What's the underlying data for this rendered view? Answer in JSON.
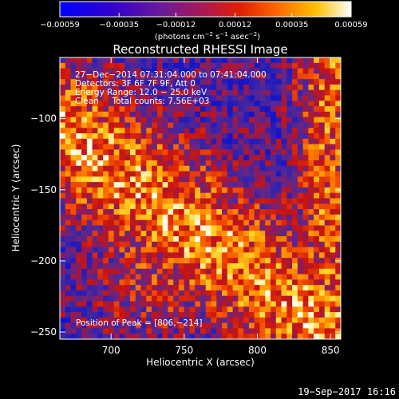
{
  "chart_data": {
    "type": "heatmap",
    "title": "Reconstructed RHESSI Image",
    "xlabel": "Heliocentric X (arcsec)",
    "ylabel": "Heliocentric Y (arcsec)",
    "xlim": [
      665,
      857
    ],
    "ylim": [
      -255,
      -57
    ],
    "x_ticks": [
      700,
      750,
      800,
      850
    ],
    "y_ticks": [
      -100,
      -150,
      -200,
      -250
    ],
    "colorbar": {
      "min": -0.00059,
      "max": 0.00059,
      "ticks": [
        -0.00059,
        -0.00035,
        -0.00012,
        0.00012,
        0.00035,
        0.00059
      ],
      "tick_labels": [
        "−0.00059",
        "−0.00035",
        "−0.00012",
        "0.00012",
        "0.00035",
        "0.00059"
      ],
      "unit_label": "(photons cm",
      "unit_exp1": "−2",
      "unit_mid": " s",
      "unit_exp2": "−1",
      "unit_end": " asec",
      "unit_exp3": "−2",
      "unit_close": ")"
    },
    "annotations": [
      "27−Dec−2014 07:31:04.000 to 07:41:04.000",
      "Detectors: 3F 6F 7F 9F, Att 0",
      "Energy Range: 12.0 − 25.0 keV",
      "Clean     Total counts: 7.56E+03"
    ],
    "peak_label": "Position of Peak = [806,−214]",
    "peak_position": [
      806,
      -214
    ]
  },
  "footer": {
    "timestamp": "19−Sep−2017 16:16"
  }
}
